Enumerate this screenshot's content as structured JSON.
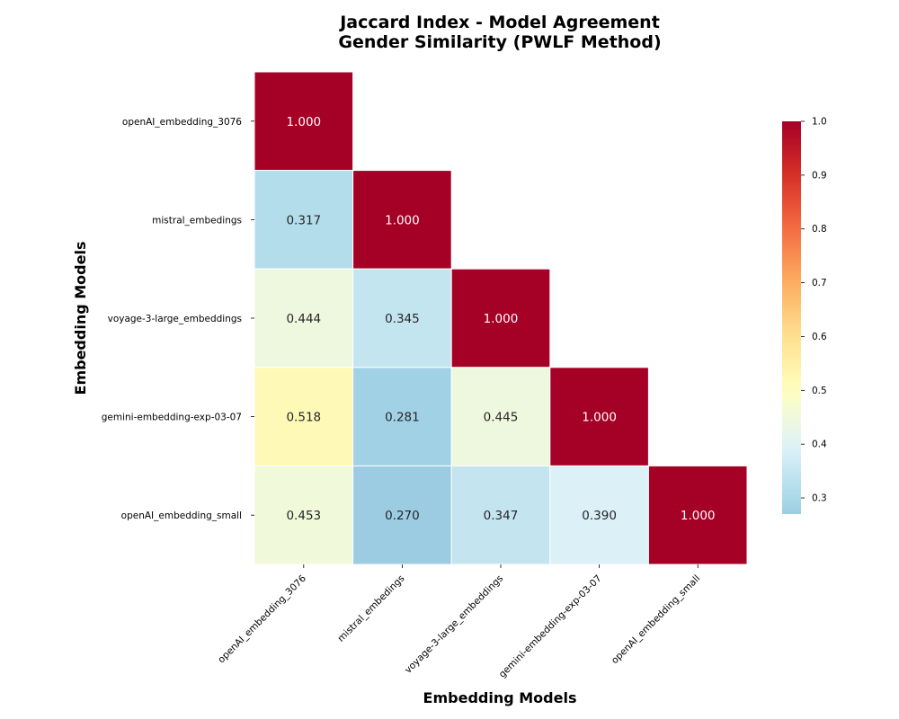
{
  "chart_data": {
    "type": "heatmap",
    "title": "Jaccard Index - Model Agreement",
    "subtitle": "Gender Similarity (PWLF Method)",
    "xlabel": "Embedding Models",
    "ylabel": "Embedding Models",
    "row_labels": [
      "openAI_embedding_3076",
      "mistral_embedings",
      "voyage-3-large_embeddings",
      "gemini-embedding-exp-03-07",
      "openAI_embedding_small"
    ],
    "col_labels": [
      "openAI_embedding_3076",
      "mistral_embedings",
      "voyage-3-large_embeddings",
      "gemini-embedding-exp-03-07",
      "openAI_embedding_small"
    ],
    "matrix": [
      [
        1.0,
        null,
        null,
        null,
        null
      ],
      [
        0.317,
        1.0,
        null,
        null,
        null
      ],
      [
        0.444,
        0.345,
        1.0,
        null,
        null
      ],
      [
        0.518,
        0.281,
        0.445,
        1.0,
        null
      ],
      [
        0.453,
        0.27,
        0.347,
        0.39,
        1.0
      ]
    ],
    "value_labels": [
      [
        "1.000",
        "",
        "",
        "",
        ""
      ],
      [
        "0.317",
        "1.000",
        "",
        "",
        ""
      ],
      [
        "0.444",
        "0.345",
        "1.000",
        "",
        ""
      ],
      [
        "0.518",
        "0.281",
        "0.445",
        "1.000",
        ""
      ],
      [
        "0.453",
        "0.270",
        "0.347",
        "0.390",
        "1.000"
      ]
    ],
    "mask": "upper-triangle",
    "colormap": "RdYlBu_r",
    "colorbar": {
      "min": 0.27,
      "max": 1.0,
      "ticks": [
        0.3,
        0.4,
        0.5,
        0.6,
        0.7,
        0.8,
        0.9,
        1.0
      ],
      "tick_labels": [
        "0.3",
        "0.4",
        "0.5",
        "0.6",
        "0.7",
        "0.8",
        "0.9",
        "1.0"
      ],
      "placement": "right"
    },
    "grid": false,
    "cell_border_color": "#ffffff"
  }
}
